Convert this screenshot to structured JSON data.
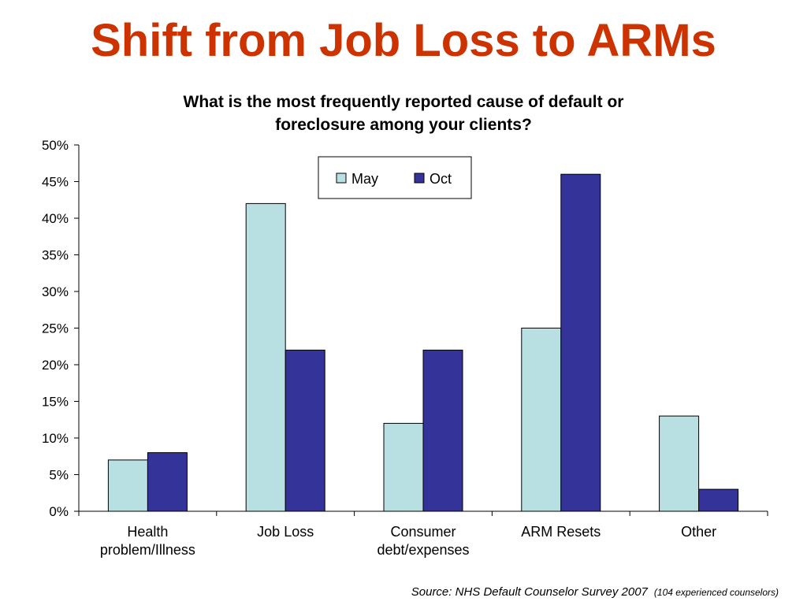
{
  "slide": {
    "title": "Shift from Job Loss to ARMs",
    "source": "Source: NHS Default Counselor Survey 2007",
    "source_note": "(104 experienced counselors)"
  },
  "chart_data": {
    "type": "bar",
    "title_lines": [
      "What is the most frequently reported cause of default or",
      "foreclosure among your clients?"
    ],
    "categories": [
      [
        "Health",
        "problem/Illness"
      ],
      [
        "Job Loss"
      ],
      [
        "Consumer",
        "debt/expenses"
      ],
      [
        "ARM Resets"
      ],
      [
        "Other"
      ]
    ],
    "series": [
      {
        "name": "May",
        "values": [
          7,
          42,
          12,
          25,
          13
        ],
        "color": "#b8e0e2"
      },
      {
        "name": "Oct",
        "values": [
          8,
          22,
          22,
          46,
          3
        ],
        "color": "#333399"
      }
    ],
    "ylim": [
      0,
      50
    ],
    "yticks": [
      0,
      5,
      10,
      15,
      20,
      25,
      30,
      35,
      40,
      45,
      50
    ],
    "ytick_suffix": "%",
    "grid": false,
    "legend_position": "top-center"
  }
}
